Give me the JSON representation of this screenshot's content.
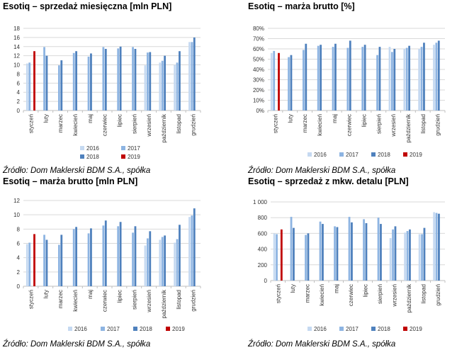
{
  "colors": {
    "2016": "#c5d9f1",
    "2017": "#8db4e2",
    "2018": "#4f81bd",
    "2019": "#c00000",
    "grid": "#d9d9d9",
    "axis": "#bfbfbf"
  },
  "legend_labels": [
    "2016",
    "2017",
    "2018",
    "2019"
  ],
  "chart_data": [
    {
      "type": "bar",
      "title": "Esotiq – sprzedaż miesięczna [mln PLN]",
      "source": "Źródło: Dom Maklerski BDM S.A., spółka",
      "categories": [
        "styczeń",
        "luty",
        "marzec",
        "kwiecień",
        "maj",
        "czerwiec",
        "lipiec",
        "sierpień",
        "wrzesień",
        "październik",
        "listopad",
        "grudzień"
      ],
      "series": [
        {
          "name": "2016",
          "values": [
            10.3,
            null,
            null,
            null,
            null,
            null,
            null,
            null,
            9.9,
            10.5,
            10.0,
            15.0
          ]
        },
        {
          "name": "2017",
          "values": [
            10.5,
            13.9,
            9.9,
            12.6,
            11.8,
            13.9,
            13.6,
            13.9,
            12.7,
            10.9,
            10.5,
            15.0
          ]
        },
        {
          "name": "2018",
          "values": [
            null,
            12.0,
            11.0,
            13.0,
            12.5,
            13.5,
            14.0,
            13.5,
            12.8,
            12.0,
            13.0,
            16.0
          ]
        },
        {
          "name": "2019",
          "values": [
            13.0,
            null,
            null,
            null,
            null,
            null,
            null,
            null,
            null,
            null,
            null,
            null
          ]
        }
      ],
      "ylim": [
        0,
        18
      ],
      "yticks": [
        0,
        2,
        4,
        6,
        8,
        10,
        12,
        14,
        16,
        18
      ],
      "ytick_labels": [
        "0",
        "2",
        "4",
        "6",
        "8",
        "10",
        "12",
        "14",
        "16",
        "18"
      ],
      "legend": "bottom"
    },
    {
      "type": "bar",
      "title": "Esotiq – marża brutto [%]",
      "source": "Źródło: Dom Maklerski BDM S.A., spółka",
      "categories": [
        "styczeń",
        "luty",
        "marzec",
        "kwiecień",
        "maj",
        "czerwiec",
        "lipiec",
        "sierpień",
        "wrzesień",
        "październik",
        "listopad",
        "grudzień"
      ],
      "series": [
        {
          "name": "2016",
          "values": [
            56,
            null,
            null,
            null,
            null,
            null,
            null,
            null,
            62,
            60,
            60,
            64
          ]
        },
        {
          "name": "2017",
          "values": [
            58,
            52,
            59,
            63,
            62,
            61,
            62,
            54,
            57,
            61,
            62,
            66
          ]
        },
        {
          "name": "2018",
          "values": [
            null,
            54,
            65,
            64,
            65,
            68,
            64,
            62,
            60,
            63,
            66,
            68
          ]
        },
        {
          "name": "2019",
          "values": [
            56,
            null,
            null,
            null,
            null,
            null,
            null,
            null,
            null,
            null,
            null,
            null
          ]
        }
      ],
      "ylim": [
        0,
        80
      ],
      "yticks": [
        0,
        10,
        20,
        30,
        40,
        50,
        60,
        70,
        80
      ],
      "ytick_labels": [
        "0%",
        "10%",
        "20%",
        "30%",
        "40%",
        "50%",
        "60%",
        "70%",
        "80%"
      ],
      "legend": "bottom"
    },
    {
      "type": "bar",
      "title": "Esotiq – marża brutto [mln PLN]",
      "source": "Źródło: Dom Maklerski BDM S.A., spółka",
      "categories": [
        "styczeń",
        "luty",
        "marzec",
        "kwiecień",
        "maj",
        "czerwiec",
        "lipiec",
        "sierpień",
        "wrzesień",
        "październik",
        "listopad",
        "grudzień"
      ],
      "series": [
        {
          "name": "2016",
          "values": [
            5.9,
            null,
            null,
            null,
            null,
            null,
            null,
            null,
            5.7,
            6.5,
            6.1,
            9.7
          ]
        },
        {
          "name": "2017",
          "values": [
            6.1,
            7.2,
            5.8,
            8.0,
            7.4,
            8.5,
            8.4,
            7.5,
            6.7,
            6.9,
            6.6,
            9.9
          ]
        },
        {
          "name": "2018",
          "values": [
            null,
            6.5,
            7.2,
            8.3,
            8.1,
            9.2,
            9.0,
            8.4,
            7.7,
            7.1,
            8.6,
            10.9
          ]
        },
        {
          "name": "2019",
          "values": [
            7.3,
            null,
            null,
            null,
            null,
            null,
            null,
            null,
            null,
            null,
            null,
            null
          ]
        }
      ],
      "ylim": [
        0,
        12
      ],
      "yticks": [
        0,
        2,
        4,
        6,
        8,
        10,
        12
      ],
      "ytick_labels": [
        "0",
        "2",
        "4",
        "6",
        "8",
        "10",
        "12"
      ],
      "legend": "bottom"
    },
    {
      "type": "bar",
      "title": "Esotiq – sprzedaż z mkw. detalu [PLN]",
      "source": "Źródło: Dom Maklerski BDM S.A., spółka",
      "categories": [
        "styczeń",
        "luty",
        "marzec",
        "kwiecień",
        "maj",
        "czerwiec",
        "lipiec",
        "sierpień",
        "wrzesień",
        "październik",
        "listopad",
        "grudzień"
      ],
      "series": [
        {
          "name": "2016",
          "values": [
            600,
            null,
            null,
            null,
            null,
            null,
            null,
            null,
            540,
            610,
            590,
            870
          ]
        },
        {
          "name": "2017",
          "values": [
            590,
            810,
            580,
            750,
            690,
            810,
            780,
            800,
            650,
            630,
            590,
            860
          ]
        },
        {
          "name": "2018",
          "values": [
            null,
            670,
            600,
            720,
            680,
            740,
            730,
            720,
            690,
            650,
            670,
            850
          ]
        },
        {
          "name": "2019",
          "values": [
            650,
            null,
            null,
            null,
            null,
            null,
            null,
            null,
            null,
            null,
            null,
            null
          ]
        }
      ],
      "ylim": [
        0,
        1000
      ],
      "yticks": [
        0,
        200,
        400,
        600,
        800,
        1000
      ],
      "ytick_labels": [
        "0",
        "200",
        "400",
        "600",
        "800",
        "1 000"
      ],
      "legend": "bottom"
    }
  ]
}
